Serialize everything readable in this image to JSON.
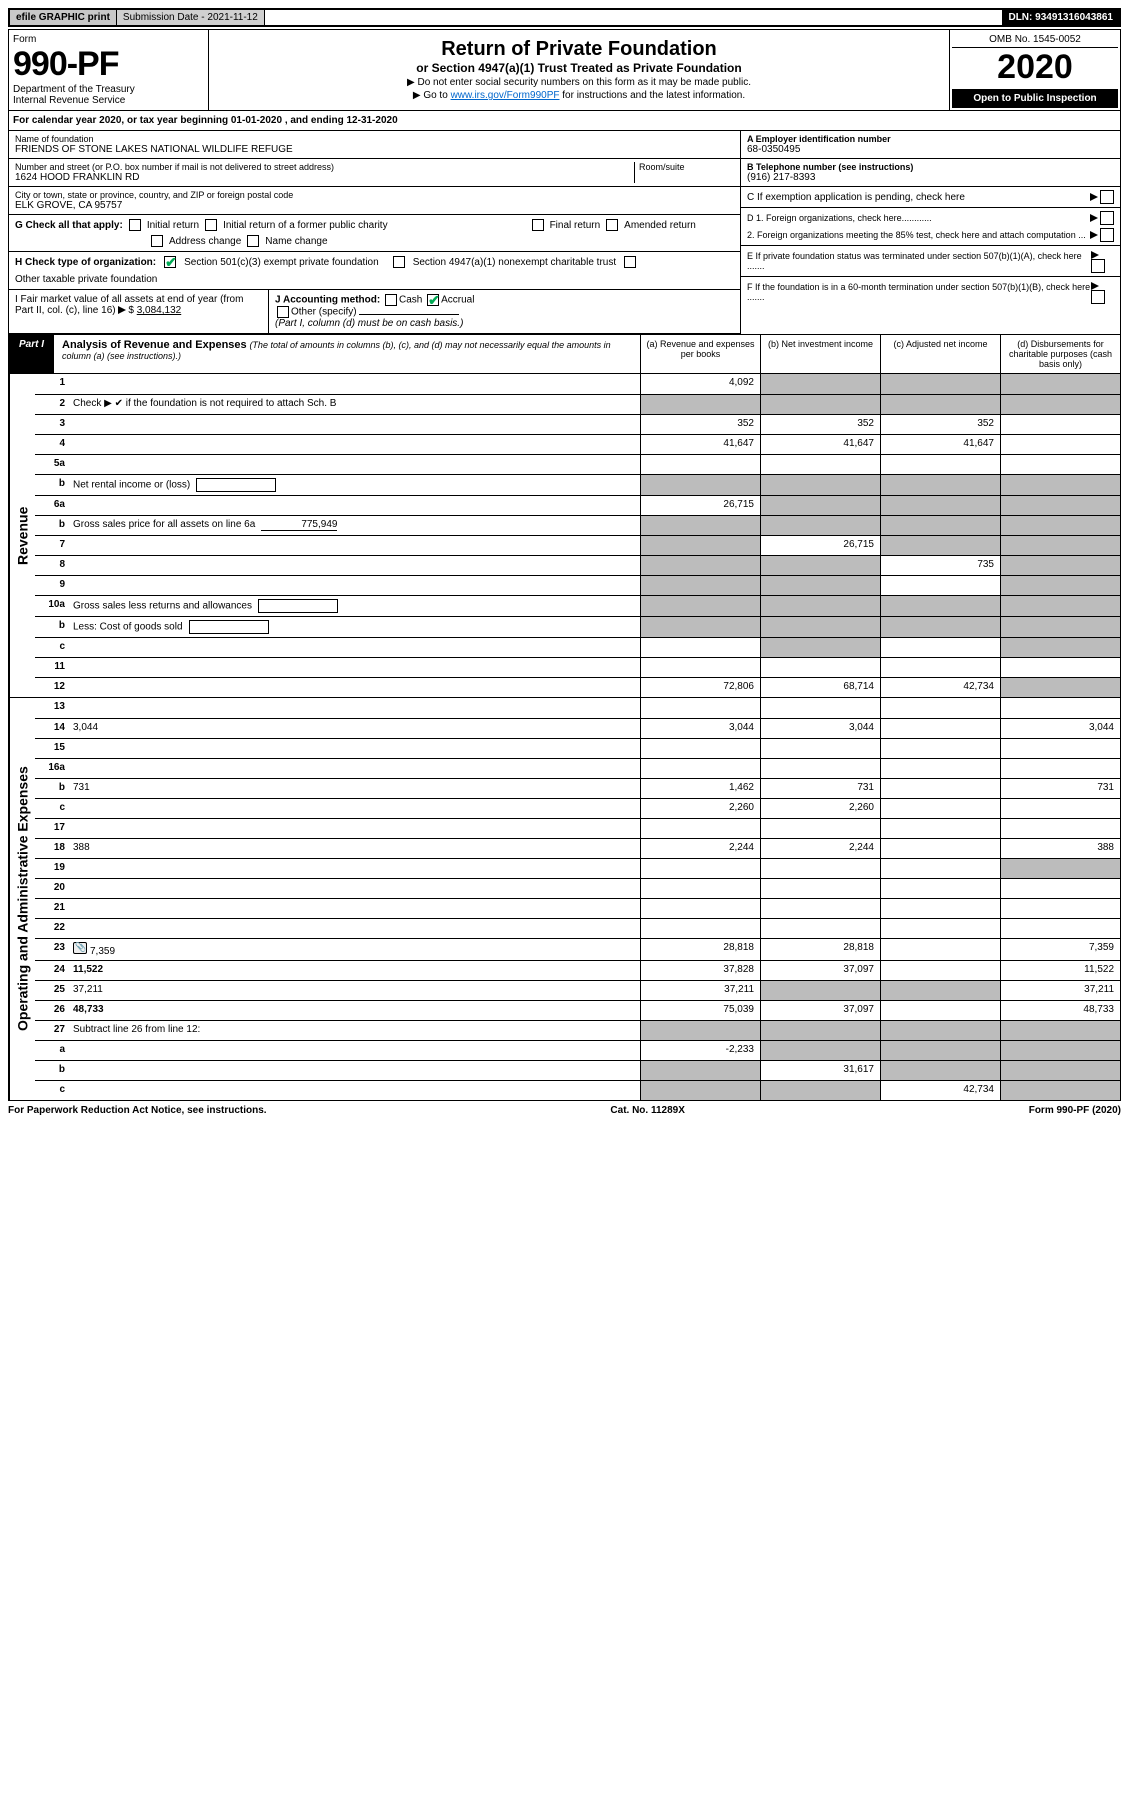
{
  "topbar": {
    "efile": "efile GRAPHIC print",
    "submission_label": "Submission Date - 2021-11-12",
    "dln": "DLN: 93491316043861"
  },
  "header": {
    "form_word": "Form",
    "form_no": "990-PF",
    "dept1": "Department of the Treasury",
    "dept2": "Internal Revenue Service",
    "title": "Return of Private Foundation",
    "subtitle": "or Section 4947(a)(1) Trust Treated as Private Foundation",
    "instr1": "▶ Do not enter social security numbers on this form as it may be made public.",
    "instr2_pre": "▶ Go to ",
    "instr2_link": "www.irs.gov/Form990PF",
    "instr2_post": " for instructions and the latest information.",
    "omb": "OMB No. 1545-0052",
    "year": "2020",
    "open": "Open to Public Inspection"
  },
  "calendar": {
    "pre": "For calendar year 2020, or tax year beginning ",
    "begin": "01-01-2020",
    "mid": " , and ending ",
    "end": "12-31-2020"
  },
  "id": {
    "name_label": "Name of foundation",
    "name": "FRIENDS OF STONE LAKES NATIONAL WILDLIFE REFUGE",
    "addr_label": "Number and street (or P.O. box number if mail is not delivered to street address)",
    "addr": "1624 HOOD FRANKLIN RD",
    "room_label": "Room/suite",
    "room": "",
    "city_label": "City or town, state or province, country, and ZIP or foreign postal code",
    "city": "ELK GROVE, CA  95757",
    "A_label": "A Employer identification number",
    "A": "68-0350495",
    "B_label": "B Telephone number (see instructions)",
    "B": "(916) 217-8393",
    "C_label": "C If exemption application is pending, check here",
    "D1": "D 1. Foreign organizations, check here............",
    "D2": "2. Foreign organizations meeting the 85% test, check here and attach computation ...",
    "E": "E  If private foundation status was terminated under section 507(b)(1)(A), check here .......",
    "F": "F  If the foundation is in a 60-month termination under section 507(b)(1)(B), check here .......",
    "G_label": "G Check all that apply:",
    "G_opts": [
      "Initial return",
      "Initial return of a former public charity",
      "Final return",
      "Amended return",
      "Address change",
      "Name change"
    ],
    "H_label": "H Check type of organization:",
    "H_opts": [
      "Section 501(c)(3) exempt private foundation",
      "Section 4947(a)(1) nonexempt charitable trust",
      "Other taxable private foundation"
    ],
    "I_label": "I Fair market value of all assets at end of year (from Part II, col. (c), line 16)",
    "I_val": "3,084,132",
    "J_label": "J Accounting method:",
    "J_opts": [
      "Cash",
      "Accrual"
    ],
    "J_other": "Other (specify)",
    "J_note": "(Part I, column (d) must be on cash basis.)"
  },
  "part1": {
    "label": "Part I",
    "title": "Analysis of Revenue and Expenses",
    "title_note": " (The total of amounts in columns (b), (c), and (d) may not necessarily equal the amounts in column (a) (see instructions).)",
    "col_a": "(a)  Revenue and expenses per books",
    "col_b": "(b)  Net investment income",
    "col_c": "(c)  Adjusted net income",
    "col_d": "(d)  Disbursements for charitable purposes (cash basis only)"
  },
  "sections": {
    "revenue": "Revenue",
    "expenses": "Operating and Administrative Expenses"
  },
  "lines": [
    {
      "n": "1",
      "d": "",
      "a": "4,092",
      "b": "",
      "c": "",
      "grey": [
        "b",
        "c",
        "d"
      ]
    },
    {
      "n": "2",
      "d": "Check ▶ ✔ if the foundation is not required to attach Sch. B",
      "nocols": true
    },
    {
      "n": "3",
      "d": "",
      "a": "352",
      "b": "352",
      "c": "352"
    },
    {
      "n": "4",
      "d": "",
      "a": "41,647",
      "b": "41,647",
      "c": "41,647"
    },
    {
      "n": "5a",
      "d": "",
      "a": "",
      "b": "",
      "c": ""
    },
    {
      "n": "b",
      "d": "Net rental income or (loss)",
      "nocols": true,
      "box": true
    },
    {
      "n": "6a",
      "d": "",
      "a": "26,715",
      "b": "",
      "c": "",
      "grey": [
        "b",
        "c",
        "d"
      ]
    },
    {
      "n": "b",
      "d": "Gross sales price for all assets on line 6a",
      "inline": "775,949",
      "nocols": true
    },
    {
      "n": "7",
      "d": "",
      "a": "",
      "b": "26,715",
      "c": "",
      "grey": [
        "a",
        "c",
        "d"
      ]
    },
    {
      "n": "8",
      "d": "",
      "a": "",
      "b": "",
      "c": "735",
      "grey": [
        "a",
        "b",
        "d"
      ]
    },
    {
      "n": "9",
      "d": "",
      "a": "",
      "b": "",
      "c": "",
      "grey": [
        "a",
        "b",
        "d"
      ]
    },
    {
      "n": "10a",
      "d": "Gross sales less returns and allowances",
      "nocols": true,
      "box": true
    },
    {
      "n": "b",
      "d": "Less: Cost of goods sold",
      "nocols": true,
      "box": true
    },
    {
      "n": "c",
      "d": "",
      "a": "",
      "b": "",
      "c": "",
      "grey": [
        "b",
        "d"
      ]
    },
    {
      "n": "11",
      "d": "",
      "a": "",
      "b": "",
      "c": ""
    },
    {
      "n": "12",
      "d": "",
      "a": "72,806",
      "b": "68,714",
      "c": "42,734",
      "bold": true,
      "grey": [
        "d"
      ]
    }
  ],
  "exp_lines": [
    {
      "n": "13",
      "d": "",
      "a": "",
      "b": "",
      "c": ""
    },
    {
      "n": "14",
      "d": "3,044",
      "a": "3,044",
      "b": "3,044",
      "c": ""
    },
    {
      "n": "15",
      "d": "",
      "a": "",
      "b": "",
      "c": ""
    },
    {
      "n": "16a",
      "d": "",
      "a": "",
      "b": "",
      "c": ""
    },
    {
      "n": "b",
      "d": "731",
      "a": "1,462",
      "b": "731",
      "c": ""
    },
    {
      "n": "c",
      "d": "",
      "a": "2,260",
      "b": "2,260",
      "c": ""
    },
    {
      "n": "17",
      "d": "",
      "a": "",
      "b": "",
      "c": ""
    },
    {
      "n": "18",
      "d": "388",
      "a": "2,244",
      "b": "2,244",
      "c": ""
    },
    {
      "n": "19",
      "d": "",
      "a": "",
      "b": "",
      "c": "",
      "grey": [
        "d"
      ]
    },
    {
      "n": "20",
      "d": "",
      "a": "",
      "b": "",
      "c": ""
    },
    {
      "n": "21",
      "d": "",
      "a": "",
      "b": "",
      "c": ""
    },
    {
      "n": "22",
      "d": "",
      "a": "",
      "b": "",
      "c": ""
    },
    {
      "n": "23",
      "d": "7,359",
      "a": "28,818",
      "b": "28,818",
      "c": "",
      "attach": true
    },
    {
      "n": "24",
      "d": "11,522",
      "a": "37,828",
      "b": "37,097",
      "c": "",
      "bold": true
    },
    {
      "n": "25",
      "d": "37,211",
      "a": "37,211",
      "b": "",
      "c": "",
      "grey": [
        "b",
        "c"
      ]
    },
    {
      "n": "26",
      "d": "48,733",
      "a": "75,039",
      "b": "37,097",
      "c": "",
      "bold": true
    },
    {
      "n": "27",
      "d": "Subtract line 26 from line 12:",
      "nocols": true
    },
    {
      "n": "a",
      "d": "",
      "a": "-2,233",
      "b": "",
      "c": "",
      "bold": true,
      "grey": [
        "b",
        "c",
        "d"
      ]
    },
    {
      "n": "b",
      "d": "",
      "a": "",
      "b": "31,617",
      "c": "",
      "bold": true,
      "grey": [
        "a",
        "c",
        "d"
      ]
    },
    {
      "n": "c",
      "d": "",
      "a": "",
      "b": "",
      "c": "42,734",
      "bold": true,
      "grey": [
        "a",
        "b",
        "d"
      ]
    }
  ],
  "footer": {
    "left": "For Paperwork Reduction Act Notice, see instructions.",
    "mid": "Cat. No. 11289X",
    "right": "Form 990-PF (2020)"
  }
}
